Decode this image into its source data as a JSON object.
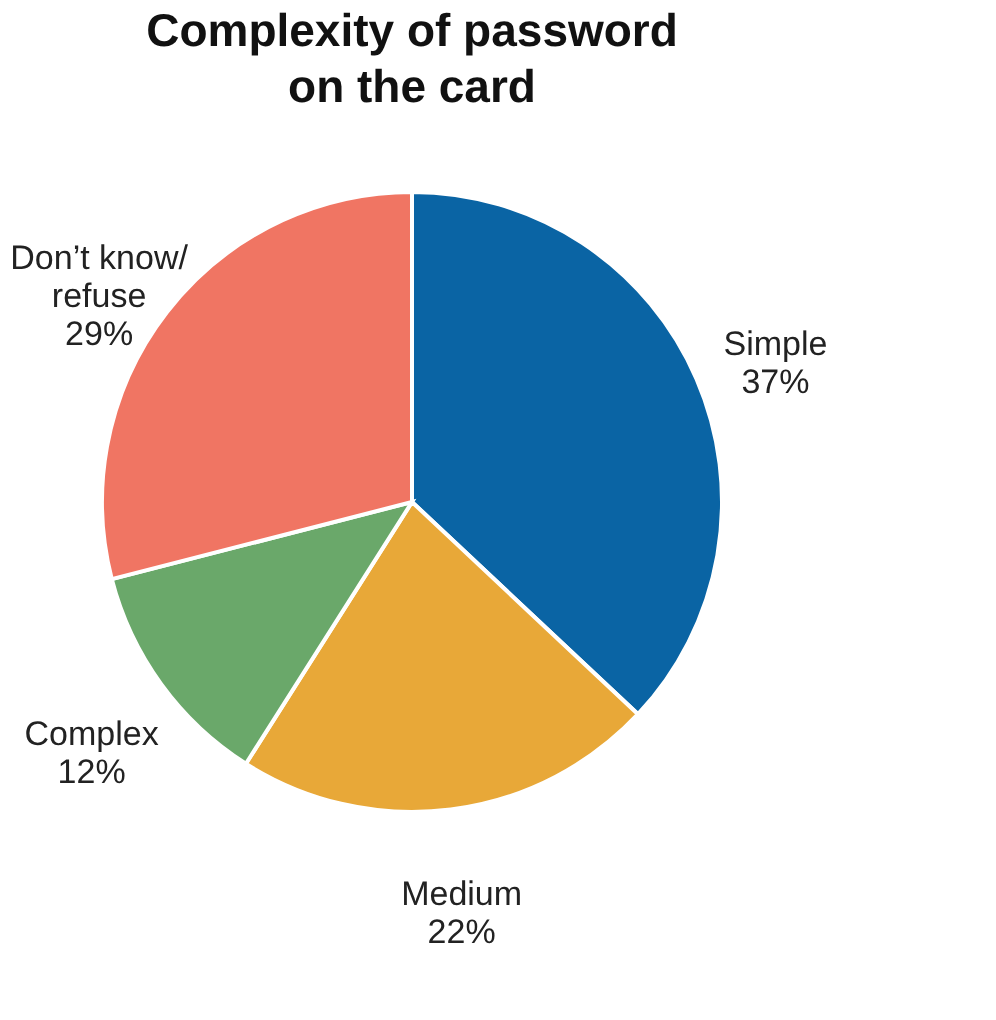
{
  "chart_data": {
    "type": "pie",
    "title": "Complexity of password\non the card",
    "categories": [
      "Simple",
      "Medium",
      "Complex",
      "Don’t know/\nrefuse"
    ],
    "values": [
      37,
      22,
      12,
      29
    ],
    "value_labels": [
      "37%",
      "22%",
      "12%",
      "29%"
    ],
    "colors": [
      "#0a64a4",
      "#e8a838",
      "#6aa86a",
      "#f07563"
    ],
    "legend": false
  }
}
